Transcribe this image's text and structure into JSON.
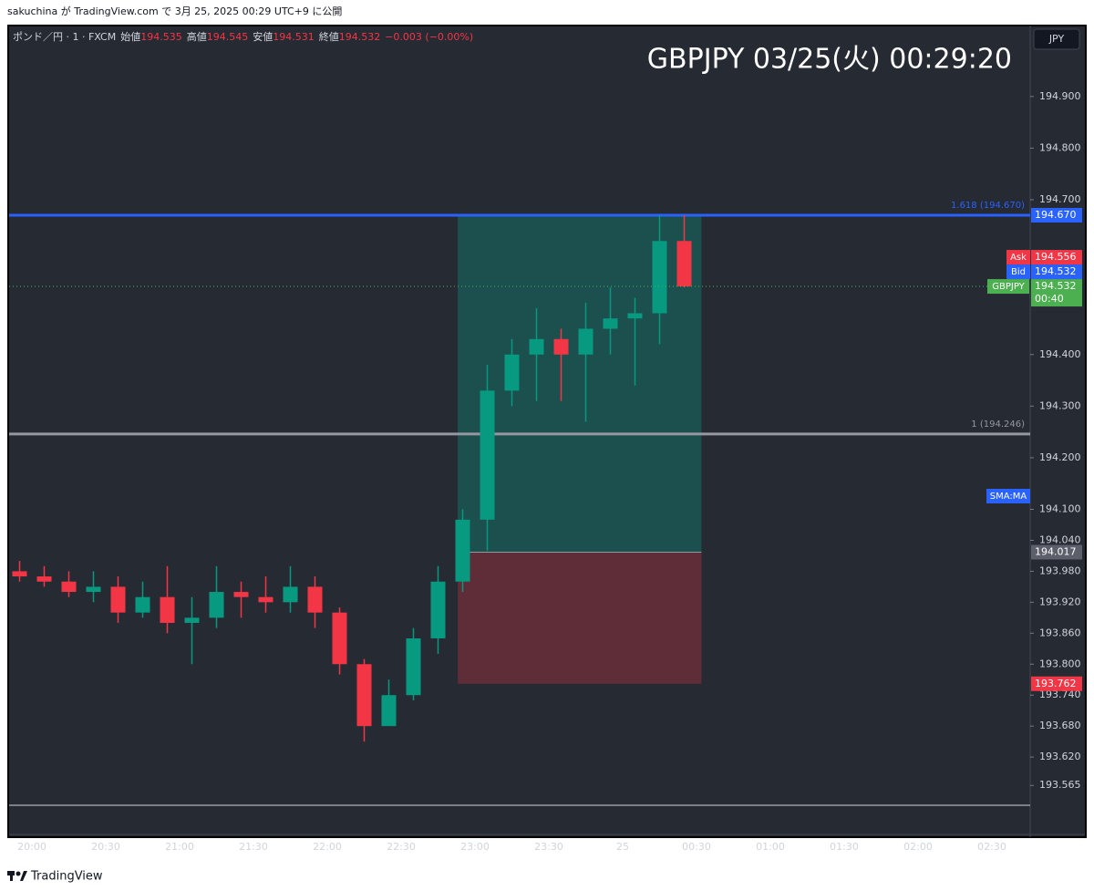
{
  "header": {
    "published": "sakuchina が TradingView.com で 3月 25, 2025 00:29 UTC+9 に公開",
    "footer": "TradingView"
  },
  "chart_data": {
    "type": "candlestick",
    "title": "GBPJPY  03/25(火)  00:29:20",
    "currency": "JPY",
    "symbol": "ポンド／円 · 1 · FXCM",
    "ohlc_legend": [
      {
        "name": "始値",
        "value": 194.535
      },
      {
        "name": "高値",
        "value": 194.545
      },
      {
        "name": "安値",
        "value": 194.531
      },
      {
        "name": "終値",
        "value": 194.532
      }
    ],
    "change": "−0.003 (−0.00%)",
    "categories": [
      null,
      "20:00",
      null,
      null,
      "20:30",
      null,
      null,
      "21:00",
      null,
      null,
      "21:30",
      null,
      null,
      "22:00",
      null,
      null,
      "22:30",
      null,
      null,
      "23:00",
      null,
      null,
      "23:30",
      null,
      null,
      "25",
      null,
      null,
      "00:30",
      null,
      null,
      "01:00",
      null,
      null,
      "01:30",
      null,
      null,
      "02:00",
      null,
      null,
      "02:30",
      null
    ],
    "open": [
      193.98,
      193.97,
      193.96,
      193.94,
      193.95,
      193.9,
      193.93,
      193.88,
      193.89,
      193.94,
      193.93,
      193.92,
      193.95,
      193.9,
      193.8,
      193.68,
      193.74,
      193.85,
      193.96,
      194.08,
      194.33,
      194.4,
      194.43,
      194.4,
      194.45,
      194.47,
      194.48,
      194.62,
      null,
      null,
      null,
      null,
      null,
      null,
      null,
      null,
      null,
      null,
      null,
      null,
      null,
      null
    ],
    "high": [
      194.0,
      193.99,
      193.98,
      193.98,
      193.97,
      193.96,
      193.99,
      193.93,
      193.99,
      193.96,
      193.97,
      193.99,
      193.97,
      193.91,
      193.81,
      193.77,
      193.87,
      193.99,
      194.1,
      194.38,
      194.43,
      194.49,
      194.45,
      194.5,
      194.53,
      194.51,
      194.67,
      194.67,
      null,
      null,
      null,
      null,
      null,
      null,
      null,
      null,
      null,
      null,
      null,
      null,
      null,
      null
    ],
    "low": [
      193.96,
      193.95,
      193.93,
      193.92,
      193.88,
      193.89,
      193.86,
      193.8,
      193.87,
      193.89,
      193.9,
      193.9,
      193.87,
      193.78,
      193.65,
      193.69,
      193.73,
      193.82,
      193.94,
      194.02,
      194.3,
      194.31,
      194.31,
      194.27,
      194.4,
      194.34,
      194.42,
      194.53,
      null,
      null,
      null,
      null,
      null,
      null,
      null,
      null,
      null,
      null,
      null,
      null,
      null,
      null
    ],
    "close": [
      193.97,
      193.96,
      193.94,
      193.95,
      193.9,
      193.93,
      193.88,
      193.89,
      193.94,
      193.93,
      193.92,
      193.95,
      193.9,
      193.8,
      193.68,
      193.74,
      193.85,
      193.96,
      194.08,
      194.33,
      194.4,
      194.43,
      194.4,
      194.45,
      194.47,
      194.48,
      194.62,
      194.532,
      null,
      null,
      null,
      null,
      null,
      null,
      null,
      null,
      null,
      null,
      null,
      null,
      null,
      null
    ],
    "up_color": "#089981",
    "down_color": "#f23645",
    "ylim": [
      193.47,
      195.034
    ],
    "yticks": [
      {
        "value": 194.9,
        "label": "194.900"
      },
      {
        "value": 194.8,
        "label": "194.800"
      },
      {
        "value": 194.7,
        "label": "194.700"
      },
      {
        "value": 194.4,
        "label": "194.400"
      },
      {
        "value": 194.3,
        "label": "194.300"
      },
      {
        "value": 194.2,
        "label": "194.200"
      },
      {
        "value": 194.1,
        "label": "194.100"
      },
      {
        "value": 194.04,
        "label": "194.040"
      },
      {
        "value": 193.98,
        "label": "193.980"
      },
      {
        "value": 193.92,
        "label": "193.920"
      },
      {
        "value": 193.86,
        "label": "193.860"
      },
      {
        "value": 193.8,
        "label": "193.800"
      },
      {
        "value": 193.74,
        "label": "193.740"
      },
      {
        "value": 193.68,
        "label": "193.680"
      },
      {
        "value": 193.62,
        "label": "193.620"
      },
      193.565
    ],
    "levels": [
      {
        "label": "1.618 (194.670)",
        "value": 194.67,
        "value_label": "194.670",
        "color": "#2962ff"
      },
      {
        "label": "1 (194.246)",
        "value": 194.246,
        "color": "#9598a1"
      }
    ],
    "position": {
      "target": 194.67,
      "entry": 194.017,
      "stop": 193.762
    },
    "price_tags": [
      {
        "name": "Ask",
        "value": 194.556,
        "color": "#f23645"
      },
      {
        "name": "Bid",
        "value": 194.532,
        "color": "#2962ff"
      },
      {
        "name": "GBPJPY",
        "value": 194.532,
        "countdown": "00:40",
        "color": "#4caf50"
      }
    ],
    "indicator_label": "SMA:MA"
  }
}
